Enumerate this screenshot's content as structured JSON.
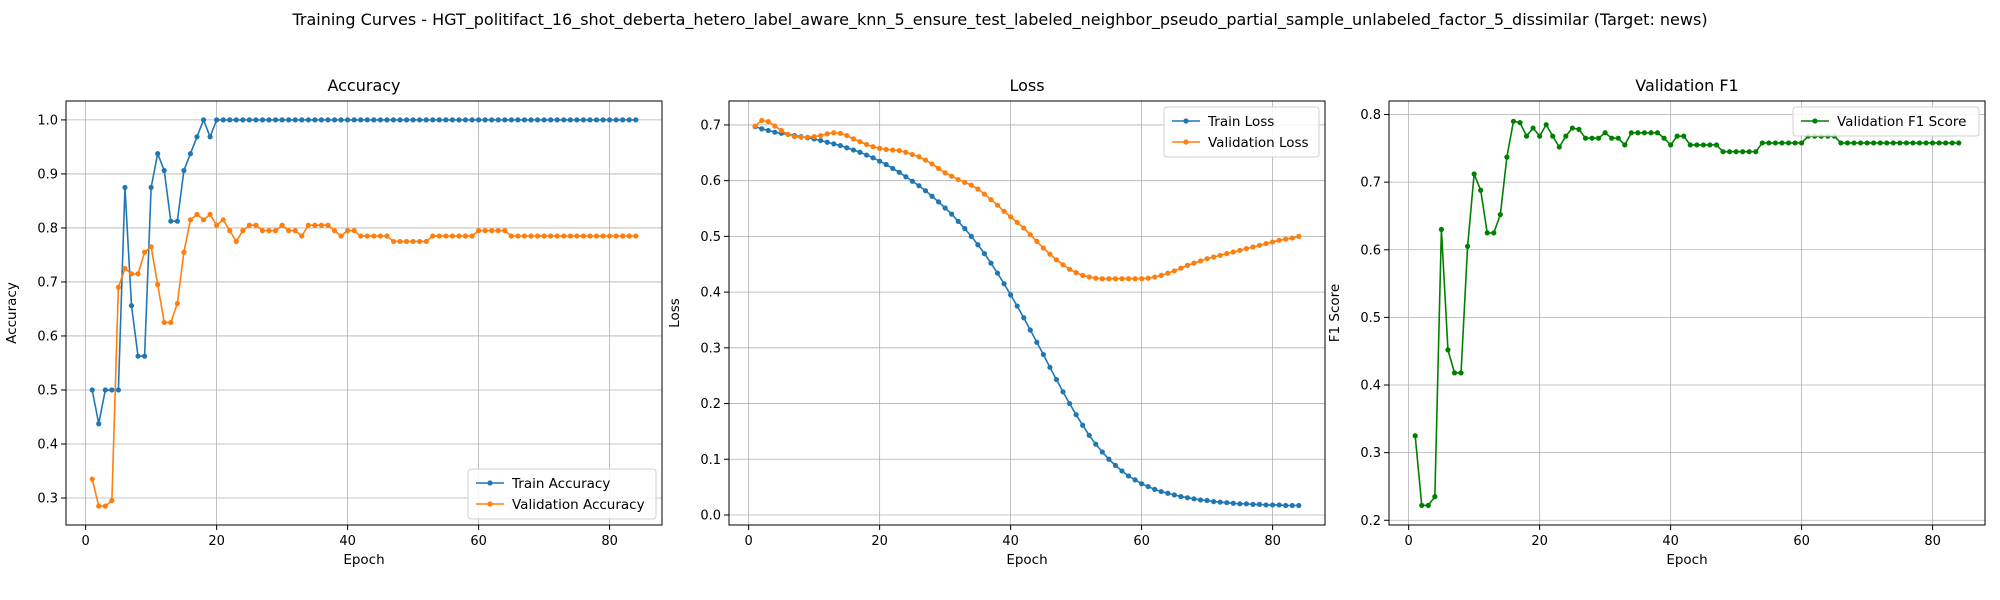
{
  "suptitle": "Training Curves - HGT_politifact_16_shot_deberta_hetero_label_aware_knn_5_ensure_test_labeled_neighbor_pseudo_partial_sample_unlabeled_factor_5_dissimilar (Target: news)",
  "colors": {
    "blue": "#1f77b4",
    "orange": "#ff7f0e",
    "green": "#008000"
  },
  "chart_data": [
    {
      "type": "line",
      "title": "Accuracy",
      "xlabel": "Epoch",
      "ylabel": "Accuracy",
      "xlim": [
        -3,
        88
      ],
      "ylim": [
        0.25,
        1.035
      ],
      "xticks": [
        0,
        20,
        40,
        60,
        80
      ],
      "yticks": [
        0.3,
        0.4,
        0.5,
        0.6,
        0.7,
        0.8,
        0.9,
        1.0
      ],
      "ytick_labels": [
        "0.3",
        "0.4",
        "0.5",
        "0.6",
        "0.7",
        "0.8",
        "0.9",
        "1.0"
      ],
      "grid": true,
      "legend_position": "lower-right",
      "series": [
        {
          "name": "Train Accuracy",
          "color": "#1f77b4",
          "values": [
            0.5,
            0.4375,
            0.5,
            0.5,
            0.5,
            0.875,
            0.65625,
            0.5625,
            0.5625,
            0.875,
            0.9375,
            0.90625,
            0.8125,
            0.8125,
            0.90625,
            0.9375,
            0.96875,
            1.0,
            0.96875,
            1.0,
            1.0,
            1.0,
            1.0,
            1.0,
            1.0,
            1.0,
            1.0,
            1.0,
            1.0,
            1.0,
            1.0,
            1.0,
            1.0,
            1.0,
            1.0,
            1.0,
            1.0,
            1.0,
            1.0,
            1.0,
            1.0,
            1.0,
            1.0,
            1.0,
            1.0,
            1.0,
            1.0,
            1.0,
            1.0,
            1.0,
            1.0,
            1.0,
            1.0,
            1.0,
            1.0,
            1.0,
            1.0,
            1.0,
            1.0,
            1.0,
            1.0,
            1.0,
            1.0,
            1.0,
            1.0,
            1.0,
            1.0,
            1.0,
            1.0,
            1.0,
            1.0,
            1.0,
            1.0,
            1.0,
            1.0,
            1.0,
            1.0,
            1.0,
            1.0,
            1.0,
            1.0,
            1.0,
            1.0,
            1.0
          ]
        },
        {
          "name": "Validation Accuracy",
          "color": "#ff7f0e",
          "values": [
            0.335,
            0.285,
            0.285,
            0.295,
            0.69,
            0.725,
            0.715,
            0.715,
            0.755,
            0.765,
            0.695,
            0.625,
            0.625,
            0.66,
            0.755,
            0.815,
            0.825,
            0.815,
            0.825,
            0.805,
            0.815,
            0.795,
            0.775,
            0.795,
            0.805,
            0.805,
            0.795,
            0.795,
            0.795,
            0.805,
            0.795,
            0.795,
            0.785,
            0.805,
            0.805,
            0.805,
            0.805,
            0.795,
            0.785,
            0.795,
            0.795,
            0.785,
            0.785,
            0.785,
            0.785,
            0.785,
            0.775,
            0.775,
            0.775,
            0.775,
            0.775,
            0.775,
            0.785,
            0.785,
            0.785,
            0.785,
            0.785,
            0.785,
            0.785,
            0.795,
            0.795,
            0.795,
            0.795,
            0.795,
            0.785,
            0.785,
            0.785,
            0.785,
            0.785,
            0.785,
            0.785,
            0.785,
            0.785,
            0.785,
            0.785,
            0.785,
            0.785,
            0.785,
            0.785,
            0.785,
            0.785,
            0.785,
            0.785,
            0.785
          ]
        }
      ]
    },
    {
      "type": "line",
      "title": "Loss",
      "xlabel": "Epoch",
      "ylabel": "Loss",
      "xlim": [
        -3,
        88
      ],
      "ylim": [
        -0.018,
        0.743
      ],
      "xticks": [
        0,
        20,
        40,
        60,
        80
      ],
      "yticks": [
        0.0,
        0.1,
        0.2,
        0.3,
        0.4,
        0.5,
        0.6,
        0.7
      ],
      "ytick_labels": [
        "0.0",
        "0.1",
        "0.2",
        "0.3",
        "0.4",
        "0.5",
        "0.6",
        "0.7"
      ],
      "grid": true,
      "legend_position": "upper-right",
      "series": [
        {
          "name": "Train Loss",
          "color": "#1f77b4",
          "values": [
            0.697,
            0.693,
            0.69,
            0.687,
            0.685,
            0.683,
            0.681,
            0.679,
            0.677,
            0.675,
            0.672,
            0.669,
            0.666,
            0.663,
            0.659,
            0.655,
            0.651,
            0.646,
            0.641,
            0.635,
            0.629,
            0.622,
            0.615,
            0.607,
            0.599,
            0.591,
            0.582,
            0.572,
            0.562,
            0.551,
            0.54,
            0.527,
            0.514,
            0.5,
            0.485,
            0.469,
            0.452,
            0.434,
            0.415,
            0.395,
            0.375,
            0.354,
            0.332,
            0.31,
            0.288,
            0.265,
            0.243,
            0.221,
            0.2,
            0.18,
            0.161,
            0.143,
            0.127,
            0.113,
            0.1,
            0.089,
            0.079,
            0.07,
            0.063,
            0.056,
            0.051,
            0.046,
            0.042,
            0.039,
            0.036,
            0.033,
            0.031,
            0.029,
            0.027,
            0.026,
            0.024,
            0.023,
            0.022,
            0.021,
            0.02,
            0.02,
            0.019,
            0.019,
            0.018,
            0.018,
            0.018,
            0.017,
            0.017,
            0.017
          ]
        },
        {
          "name": "Validation Loss",
          "color": "#ff7f0e",
          "values": [
            0.698,
            0.708,
            0.706,
            0.698,
            0.69,
            0.683,
            0.679,
            0.678,
            0.678,
            0.679,
            0.681,
            0.684,
            0.686,
            0.685,
            0.681,
            0.675,
            0.67,
            0.665,
            0.661,
            0.658,
            0.656,
            0.655,
            0.654,
            0.651,
            0.647,
            0.643,
            0.637,
            0.63,
            0.622,
            0.614,
            0.608,
            0.602,
            0.597,
            0.592,
            0.585,
            0.576,
            0.566,
            0.556,
            0.545,
            0.535,
            0.525,
            0.515,
            0.503,
            0.491,
            0.479,
            0.468,
            0.458,
            0.449,
            0.441,
            0.435,
            0.43,
            0.427,
            0.425,
            0.424,
            0.424,
            0.424,
            0.424,
            0.424,
            0.424,
            0.424,
            0.425,
            0.427,
            0.43,
            0.434,
            0.438,
            0.443,
            0.448,
            0.452,
            0.456,
            0.46,
            0.463,
            0.466,
            0.469,
            0.472,
            0.475,
            0.478,
            0.481,
            0.484,
            0.487,
            0.49,
            0.493,
            0.495,
            0.497,
            0.5
          ]
        }
      ]
    },
    {
      "type": "line",
      "title": "Validation F1",
      "xlabel": "Epoch",
      "ylabel": "F1 Score",
      "xlim": [
        -3,
        88
      ],
      "ylim": [
        0.193,
        0.82
      ],
      "xticks": [
        0,
        20,
        40,
        60,
        80
      ],
      "yticks": [
        0.2,
        0.3,
        0.4,
        0.5,
        0.6,
        0.7,
        0.8
      ],
      "ytick_labels": [
        "0.2",
        "0.3",
        "0.4",
        "0.5",
        "0.6",
        "0.7",
        "0.8"
      ],
      "grid": true,
      "legend_position": "upper-right",
      "series": [
        {
          "name": "Validation F1 Score",
          "color": "#008000",
          "values": [
            0.325,
            0.222,
            0.222,
            0.235,
            0.63,
            0.452,
            0.418,
            0.418,
            0.605,
            0.712,
            0.688,
            0.625,
            0.625,
            0.652,
            0.737,
            0.79,
            0.788,
            0.768,
            0.78,
            0.768,
            0.785,
            0.768,
            0.752,
            0.768,
            0.78,
            0.778,
            0.765,
            0.765,
            0.765,
            0.773,
            0.765,
            0.765,
            0.755,
            0.773,
            0.773,
            0.773,
            0.773,
            0.773,
            0.765,
            0.755,
            0.768,
            0.768,
            0.755,
            0.755,
            0.755,
            0.755,
            0.755,
            0.745,
            0.745,
            0.745,
            0.745,
            0.745,
            0.745,
            0.758,
            0.758,
            0.758,
            0.758,
            0.758,
            0.758,
            0.758,
            0.768,
            0.768,
            0.768,
            0.768,
            0.768,
            0.758,
            0.758,
            0.758,
            0.758,
            0.758,
            0.758,
            0.758,
            0.758,
            0.758,
            0.758,
            0.758,
            0.758,
            0.758,
            0.758,
            0.758,
            0.758,
            0.758,
            0.758,
            0.758
          ]
        }
      ]
    }
  ]
}
